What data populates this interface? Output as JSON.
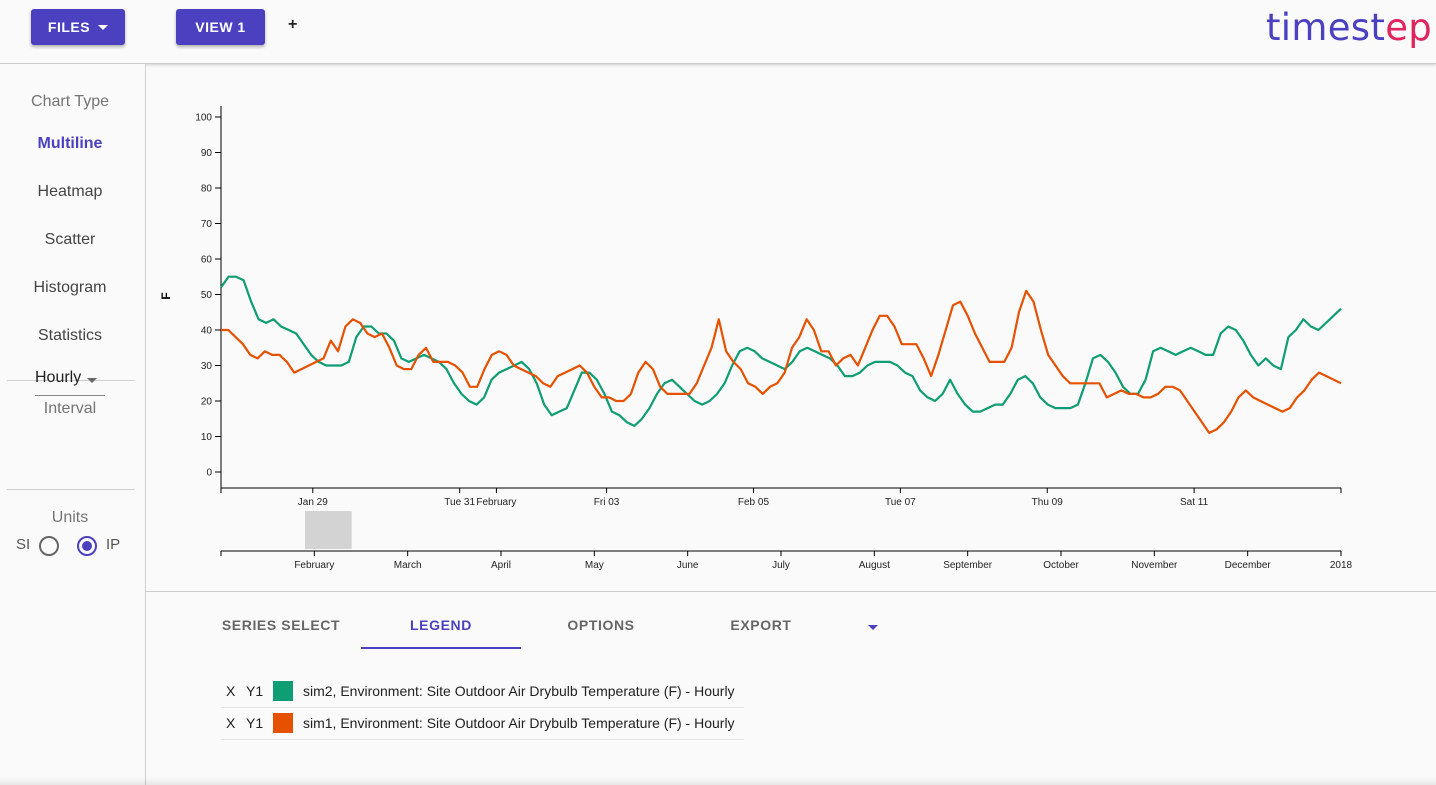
{
  "toolbar": {
    "files_label": "FILES",
    "view_label": "VIEW 1",
    "add_label": "+",
    "logo_part1": "timest",
    "logo_part2": "ep"
  },
  "sidebar": {
    "chart_type_heading": "Chart Type",
    "chart_types": [
      "Multiline",
      "Heatmap",
      "Scatter",
      "Histogram",
      "Statistics"
    ],
    "active_chart_type": "Multiline",
    "interval_heading": "Interval",
    "interval_value": "Hourly",
    "units_heading": "Units",
    "unit_si": "SI",
    "unit_ip": "IP",
    "selected_unit": "IP"
  },
  "chart_data": {
    "type": "line",
    "ylabel": "F",
    "ylim": [
      0,
      100
    ],
    "y_ticks": [
      0,
      10,
      20,
      30,
      40,
      50,
      60,
      70,
      80,
      90,
      100
    ],
    "x_tick_labels": [
      "Jan 29",
      "Tue 31",
      "February",
      "Fri 03",
      "Feb 05",
      "Tue 07",
      "Thu 09",
      "Sat 11"
    ],
    "x_tick_days": [
      2,
      4,
      4.5,
      6,
      8,
      10,
      12,
      14
    ],
    "x_range_days": [
      0.75,
      16
    ],
    "series": [
      {
        "name": "sim2, Environment: Site Outdoor Air Drybulb Temperature (F) - Hourly",
        "color": "#0f9d74",
        "values": [
          52,
          55,
          55,
          54,
          48,
          43,
          42,
          43,
          41,
          40,
          39,
          36,
          33,
          31,
          30,
          30,
          30,
          31,
          38,
          41,
          41,
          39,
          39,
          37,
          32,
          31,
          32,
          33,
          32,
          31,
          29,
          25,
          22,
          20,
          19,
          21,
          26,
          28,
          29,
          30,
          31,
          29,
          25,
          19,
          16,
          17,
          18,
          23,
          28,
          28,
          26,
          22,
          17,
          16,
          14,
          13,
          15,
          18,
          22,
          25,
          26,
          24,
          22,
          20,
          19,
          20,
          22,
          25,
          30,
          34,
          35,
          34,
          32,
          31,
          30,
          29,
          31,
          34,
          35,
          34,
          33,
          32,
          30,
          27,
          27,
          28,
          30,
          31,
          31,
          31,
          30,
          28,
          27,
          23,
          21,
          20,
          22,
          26,
          22,
          19,
          17,
          17,
          18,
          19,
          19,
          22,
          26,
          27,
          25,
          21,
          19,
          18,
          18,
          18,
          19,
          25,
          32,
          33,
          31,
          28,
          24,
          22,
          22,
          26,
          34,
          35,
          34,
          33,
          34,
          35,
          34,
          33,
          33,
          39,
          41,
          40,
          37,
          33,
          30,
          32,
          30,
          29,
          38,
          40,
          43,
          41,
          40,
          42,
          44,
          46
        ]
      },
      {
        "name": "sim1, Environment: Site Outdoor Air Drybulb Temperature (F) - Hourly",
        "color": "#e65100",
        "values": [
          40,
          40,
          38,
          36,
          33,
          32,
          34,
          33,
          33,
          31,
          28,
          29,
          30,
          31,
          32,
          37,
          34,
          41,
          43,
          42,
          39,
          38,
          39,
          35,
          30,
          29,
          29,
          33,
          35,
          31,
          31,
          31,
          30,
          28,
          24,
          24,
          29,
          33,
          34,
          33,
          30,
          29,
          28,
          27,
          25,
          24,
          27,
          28,
          29,
          30,
          28,
          24,
          21,
          21,
          20,
          20,
          22,
          28,
          31,
          29,
          24,
          22,
          22,
          22,
          22,
          25,
          30,
          35,
          43,
          34,
          31,
          29,
          25,
          24,
          22,
          24,
          25,
          28,
          35,
          38,
          43,
          40,
          34,
          34,
          30,
          32,
          33,
          30,
          35,
          40,
          44,
          44,
          41,
          36,
          36,
          36,
          32,
          27,
          33,
          40,
          47,
          48,
          44,
          39,
          35,
          31,
          31,
          31,
          35,
          45,
          51,
          48,
          40,
          33,
          30,
          27,
          25,
          25,
          25,
          25,
          25,
          21,
          22,
          23,
          22,
          22,
          21,
          21,
          22,
          24,
          24,
          23,
          20,
          17,
          14,
          11,
          12,
          14,
          17,
          21,
          23,
          21,
          20,
          19,
          18,
          17,
          18,
          21,
          23,
          26,
          28,
          27,
          26,
          25
        ]
      }
    ],
    "navigator": {
      "x_tick_labels": [
        "February",
        "March",
        "April",
        "May",
        "June",
        "July",
        "August",
        "September",
        "October",
        "November",
        "December",
        "2018"
      ],
      "x_tick_months": [
        1,
        2,
        3,
        4,
        5,
        6,
        7,
        8,
        9,
        10,
        11,
        12
      ],
      "brush_months": [
        0.9,
        1.4
      ]
    }
  },
  "bottom_panel": {
    "tabs": [
      "SERIES SELECT",
      "LEGEND",
      "OPTIONS",
      "EXPORT"
    ],
    "active_tab": "LEGEND",
    "legend_rows": [
      {
        "x_label": "X",
        "y_label": "Y1",
        "color": "#0f9d74",
        "name": "sim2, Environment: Site Outdoor Air Drybulb Temperature (F) - Hourly"
      },
      {
        "x_label": "X",
        "y_label": "Y1",
        "color": "#e65100",
        "name": "sim1, Environment: Site Outdoor Air Drybulb Temperature (F) - Hourly"
      }
    ]
  }
}
